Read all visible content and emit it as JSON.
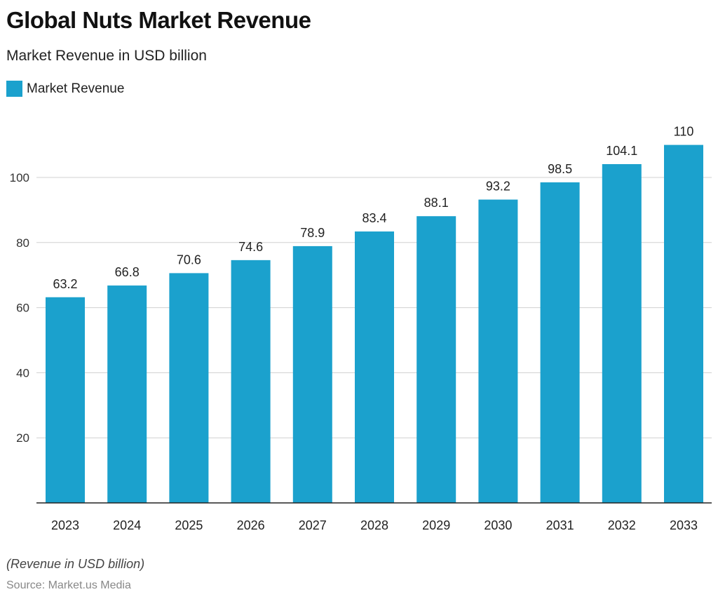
{
  "chart_data": {
    "type": "bar",
    "title": "Global Nuts Market Revenue",
    "subtitle": "Market Revenue in USD billion",
    "categories": [
      "2023",
      "2024",
      "2025",
      "2026",
      "2027",
      "2028",
      "2029",
      "2030",
      "2031",
      "2032",
      "2033"
    ],
    "series": [
      {
        "name": "Market Revenue",
        "values": [
          63.2,
          66.8,
          70.6,
          74.6,
          78.9,
          83.4,
          88.1,
          93.2,
          98.5,
          104.1,
          110
        ],
        "color": "#1ba1cd"
      }
    ],
    "data_labels": [
      "63.2",
      "66.8",
      "70.6",
      "74.6",
      "78.9",
      "83.4",
      "88.1",
      "93.2",
      "98.5",
      "104.1",
      "110"
    ],
    "yticks": [
      20,
      40,
      60,
      80,
      100
    ],
    "ylim": [
      0,
      115
    ],
    "grid": true,
    "legend": "top-left",
    "xlabel": "",
    "ylabel": ""
  },
  "footer": {
    "note": "(Revenue in USD billion)",
    "source": "Source: Market.us Media"
  }
}
